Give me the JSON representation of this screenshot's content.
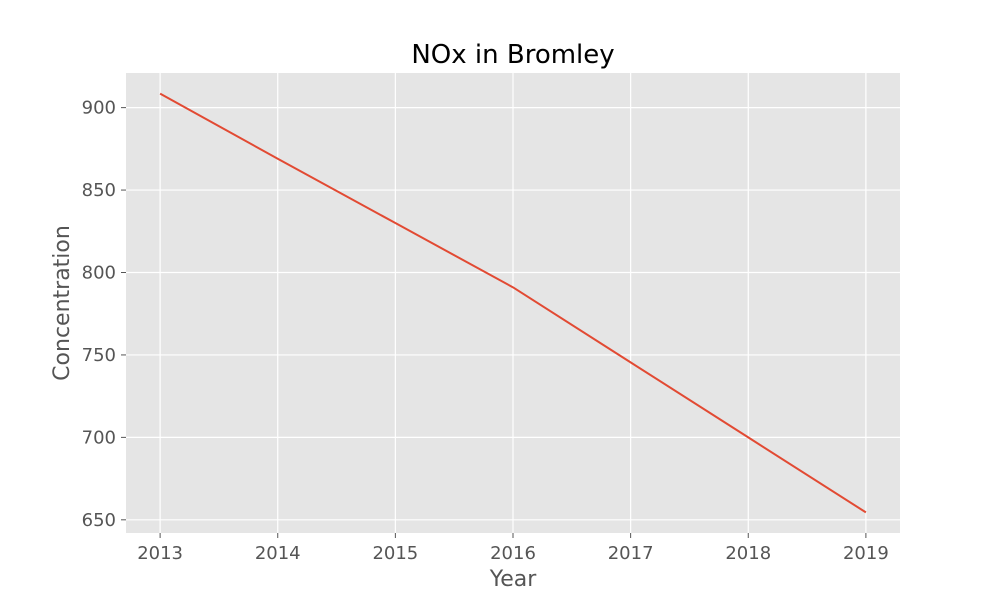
{
  "chart_data": {
    "type": "line",
    "title": "NOx in Bromley",
    "xlabel": "Year",
    "ylabel": "Concentration",
    "x": [
      2013,
      2014,
      2015,
      2016,
      2017,
      2018,
      2019
    ],
    "series": [
      {
        "values": [
          908.5,
          869.0,
          830.0,
          791.0,
          745.5,
          700.0,
          654.5
        ]
      }
    ],
    "xticks": [
      "2013",
      "2014",
      "2015",
      "2016",
      "2017",
      "2018",
      "2019"
    ],
    "yticks": [
      "650",
      "700",
      "750",
      "800",
      "850",
      "900"
    ],
    "xlim": [
      2012.71,
      2019.29
    ],
    "ylim": [
      642.0,
      921.0
    ],
    "grid": true,
    "style": "ggplot",
    "colors": {
      "line": "#E24A33",
      "plot_bg": "#E5E5E5",
      "grid": "#FFFFFF",
      "tick": "#555555"
    }
  }
}
